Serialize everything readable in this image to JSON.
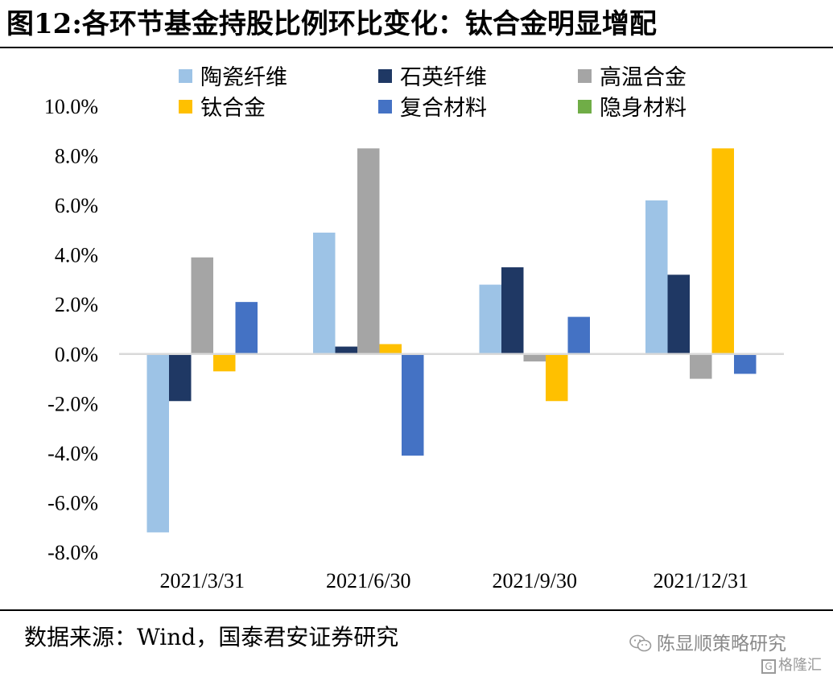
{
  "title": "图12:各环节基金持股比例环比变化：钛合金明显增配",
  "source": "数据来源：Wind，国泰君安证券研究",
  "watermark": "陈显顺策略研究",
  "watermark2": "格隆汇",
  "watermark2_mark": "G",
  "chart_data": {
    "type": "bar",
    "categories": [
      "2021/3/31",
      "2021/6/30",
      "2021/9/30",
      "2021/12/31"
    ],
    "series": [
      {
        "name": "陶瓷纤维",
        "color": "#9DC3E6",
        "values": [
          -7.2,
          4.9,
          2.8,
          6.2
        ]
      },
      {
        "name": "石英纤维",
        "color": "#1F3864",
        "values": [
          -1.9,
          0.3,
          3.5,
          3.2
        ]
      },
      {
        "name": "高温合金",
        "color": "#A5A5A5",
        "values": [
          3.9,
          8.3,
          -0.3,
          -1.0
        ]
      },
      {
        "name": "钛合金",
        "color": "#FFC000",
        "values": [
          -0.7,
          0.4,
          -1.9,
          8.3
        ]
      },
      {
        "name": "复合材料",
        "color": "#4472C4",
        "values": [
          2.1,
          -4.1,
          1.5,
          -0.8
        ]
      },
      {
        "name": "隐身材料",
        "color": "#70AD47",
        "values": [
          0,
          0,
          0,
          0
        ]
      }
    ],
    "yticks": [
      "10.0%",
      "8.0%",
      "6.0%",
      "4.0%",
      "2.0%",
      "0.0%",
      "-2.0%",
      "-4.0%",
      "-6.0%",
      "-8.0%"
    ],
    "ylim": [
      -8,
      10
    ],
    "unit": "%",
    "grid": false,
    "legend_position": "top"
  }
}
